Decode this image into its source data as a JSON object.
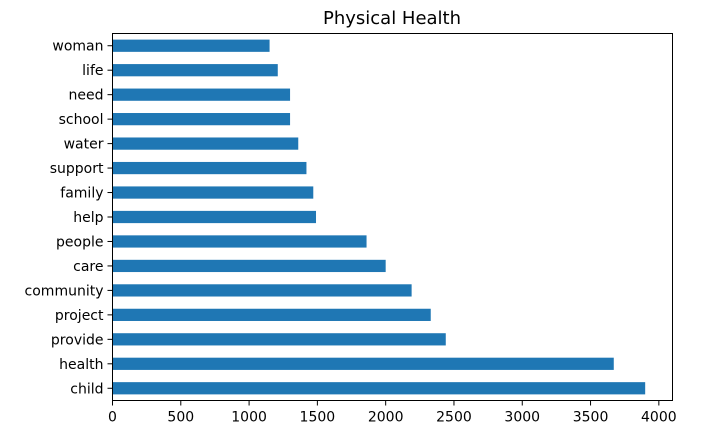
{
  "chart_data": {
    "type": "bar",
    "orientation": "horizontal",
    "title": "Physical Health",
    "xlabel": "",
    "ylabel": "",
    "categories": [
      "child",
      "health",
      "provide",
      "project",
      "community",
      "care",
      "people",
      "help",
      "family",
      "support",
      "water",
      "school",
      "need",
      "life",
      "woman"
    ],
    "values": [
      3900,
      3670,
      2440,
      2330,
      2190,
      2000,
      1860,
      1490,
      1470,
      1420,
      1360,
      1300,
      1300,
      1210,
      1150
    ],
    "xlim": [
      0,
      4100
    ],
    "xticks": [
      0,
      500,
      1000,
      1500,
      2000,
      2500,
      3000,
      3500,
      4000
    ],
    "xtick_labels": [
      "0",
      "500",
      "1000",
      "1500",
      "2000",
      "2500",
      "3000",
      "3500",
      "4000"
    ],
    "bar_color": "#1f77b4",
    "grid": false,
    "legend": "none"
  }
}
